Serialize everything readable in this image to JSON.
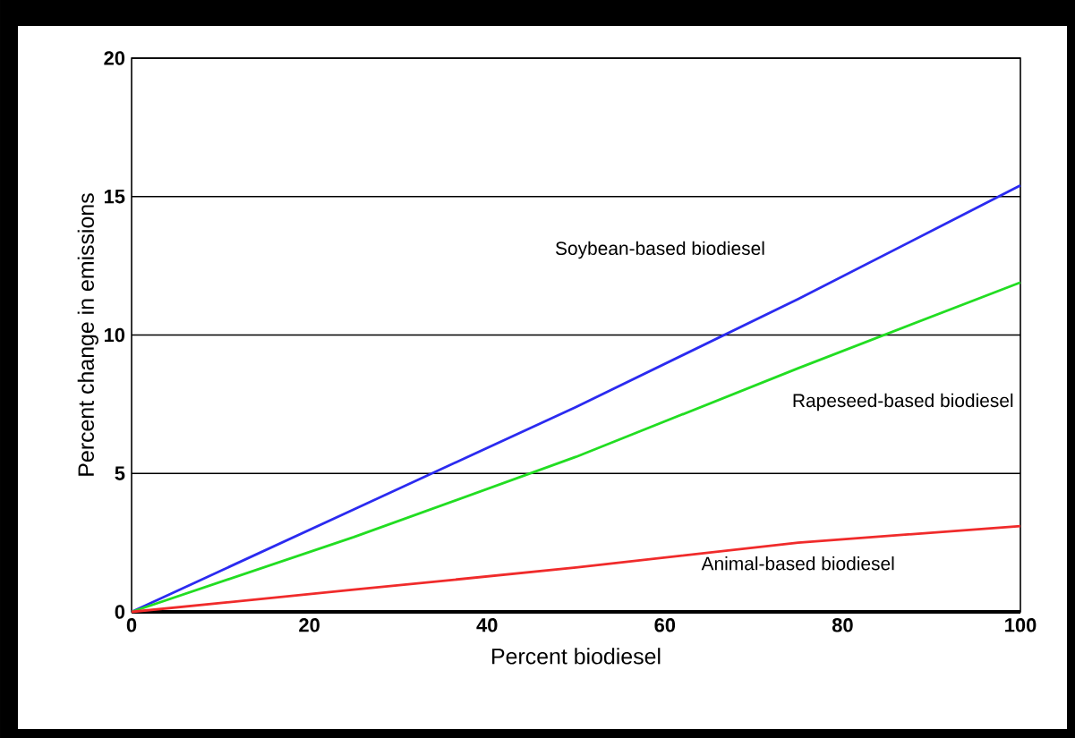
{
  "chart_data": {
    "type": "line",
    "xlabel": "Percent biodiesel",
    "ylabel": "Percent change in emissions",
    "x": [
      0,
      25,
      50,
      75,
      100
    ],
    "series": [
      {
        "name": "Soybean-based biodiesel",
        "color": "#2b2bf0",
        "values": [
          0,
          3.7,
          7.4,
          11.3,
          15.4
        ]
      },
      {
        "name": "Rapeseed-based biodiesel",
        "color": "#22dd22",
        "values": [
          0,
          2.7,
          5.6,
          8.8,
          11.9
        ]
      },
      {
        "name": "Animal-based biodiesel",
        "color": "#f02b2b",
        "values": [
          0,
          0.8,
          1.6,
          2.5,
          3.1
        ]
      }
    ],
    "xlim": [
      0,
      100
    ],
    "ylim": [
      0,
      20
    ],
    "xticks": [
      0,
      20,
      40,
      60,
      80,
      100
    ],
    "yticks": [
      0,
      5,
      10,
      15,
      20
    ],
    "grid": "y"
  }
}
